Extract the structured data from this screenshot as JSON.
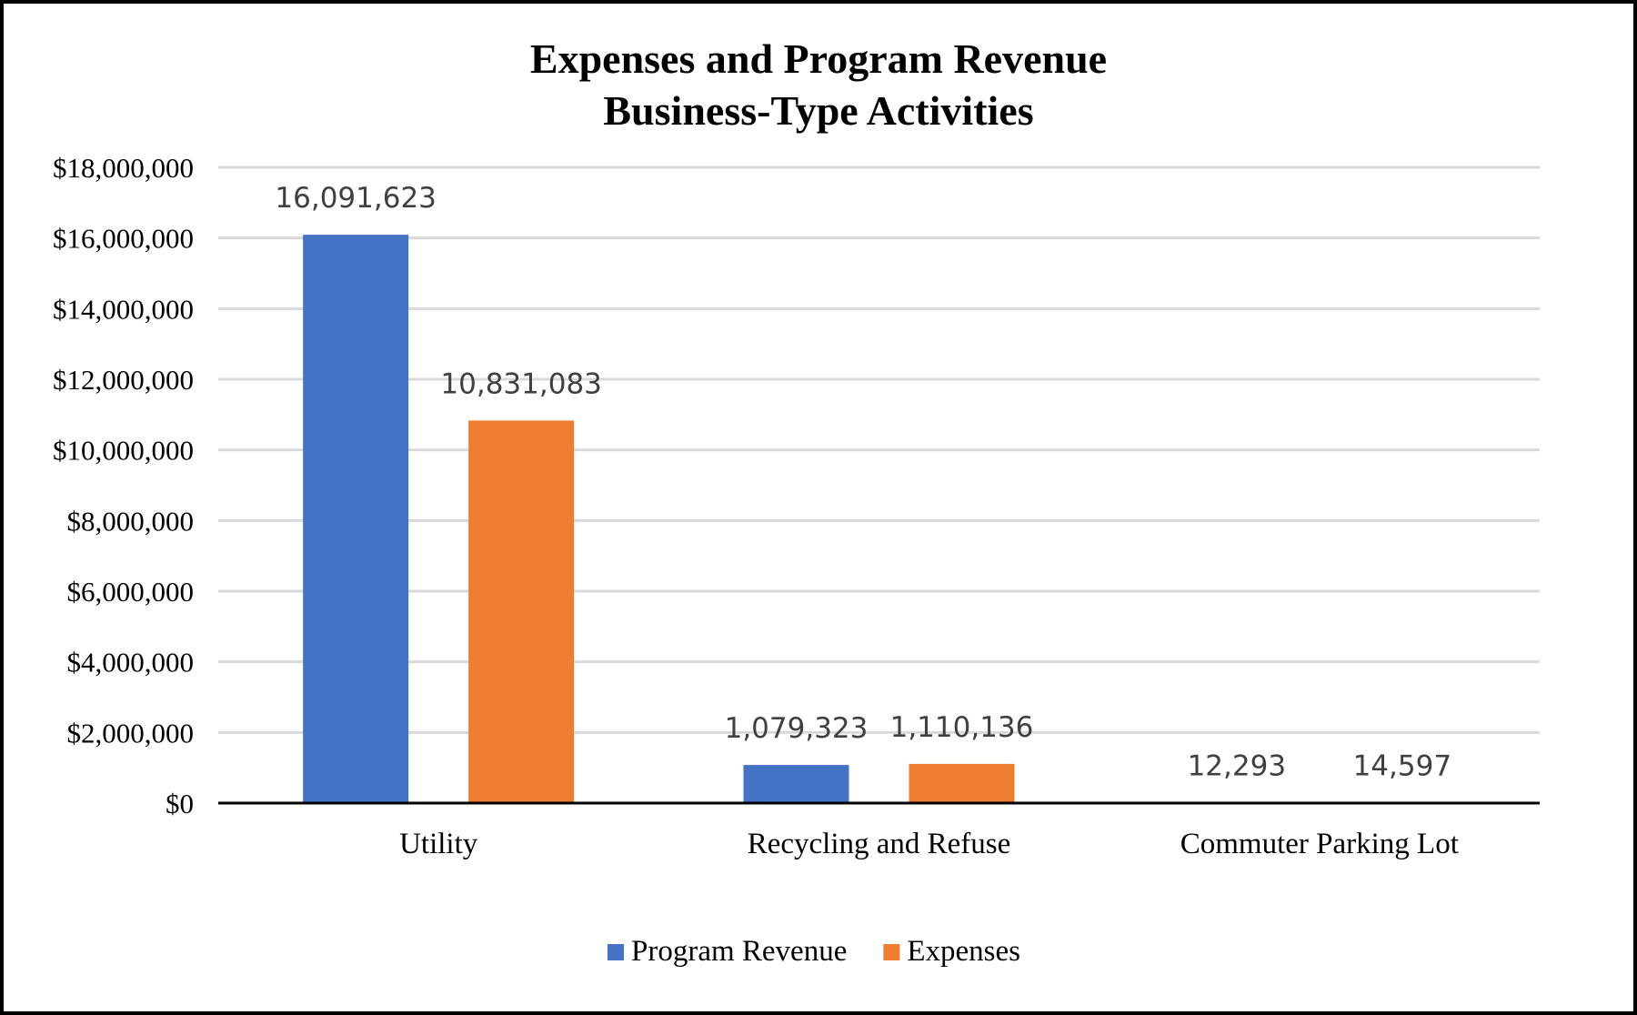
{
  "chart_data": {
    "type": "bar",
    "title": [
      "Expenses and Program Revenue",
      "Business-Type Activities"
    ],
    "categories": [
      "Utility",
      "Recycling and Refuse",
      "Commuter Parking Lot"
    ],
    "series": [
      {
        "name": "Program Revenue",
        "color": "#4472C4",
        "values": [
          16091623,
          1079323,
          12293
        ],
        "labels": [
          "16,091,623",
          "1,079,323",
          "12,293"
        ]
      },
      {
        "name": "Expenses",
        "color": "#ED7D31",
        "values": [
          10831083,
          1110136,
          14597
        ],
        "labels": [
          "10,831,083",
          "1,110,136",
          "14,597"
        ]
      }
    ],
    "ylim": [
      0,
      18000000
    ],
    "yticks": [
      0,
      2000000,
      4000000,
      6000000,
      8000000,
      10000000,
      12000000,
      14000000,
      16000000,
      18000000
    ],
    "ytick_labels": [
      "$0",
      "$2,000,000",
      "$4,000,000",
      "$6,000,000",
      "$8,000,000",
      "$10,000,000",
      "$12,000,000",
      "$14,000,000",
      "$16,000,000",
      "$18,000,000"
    ],
    "xlabel": "",
    "ylabel": "",
    "grid": true,
    "legend": "bottom-center"
  }
}
